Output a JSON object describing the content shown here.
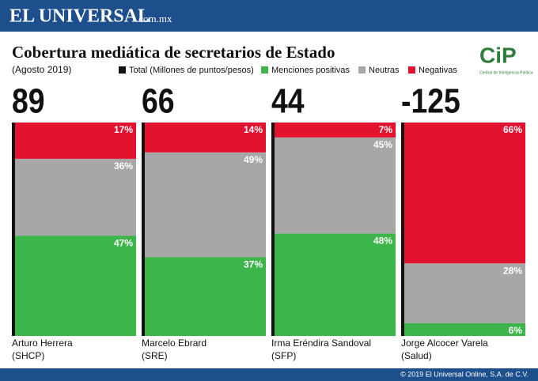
{
  "header": {
    "brand": "EL UNIVERSAL",
    "domain": ".com.mx"
  },
  "logo": {
    "name": "CiP",
    "subtitle": "Central de Inteligencia Política"
  },
  "footer": "© 2019 El Universal Online, S.A. de C.V.",
  "chart_data": {
    "type": "bar",
    "stacked": true,
    "title": "Cobertura mediática de secretarios de Estado",
    "subtitle": "(Agosto 2019)",
    "categories": [
      "Arturo Herrera",
      "Marcelo Ebrard",
      "Irma Eréndira Sandoval",
      "Jorge Alcocer Varela"
    ],
    "departments": [
      "(SHCP)",
      "(SRE)",
      "(SFP)",
      "(Salud)"
    ],
    "total": {
      "name": "Total (Millones de puntos/pesos)",
      "color": "#111111",
      "values": [
        89,
        66,
        44,
        -125
      ]
    },
    "ylim": [
      0,
      100
    ],
    "series": [
      {
        "name": "Menciones  positivas",
        "color": "#3db54a",
        "values": [
          47,
          37,
          48,
          6
        ],
        "value_labels": [
          "47%",
          "37%",
          "48%",
          "6%"
        ]
      },
      {
        "name": "Neutras",
        "color": "#a7a7a7",
        "values": [
          36,
          49,
          45,
          28
        ],
        "value_labels": [
          "36%",
          "49%",
          "45%",
          "28%"
        ]
      },
      {
        "name": "Negativas",
        "color": "#e3122f",
        "values": [
          17,
          14,
          7,
          66
        ],
        "value_labels": [
          "17%",
          "14%",
          "7%",
          "66%"
        ]
      }
    ]
  }
}
